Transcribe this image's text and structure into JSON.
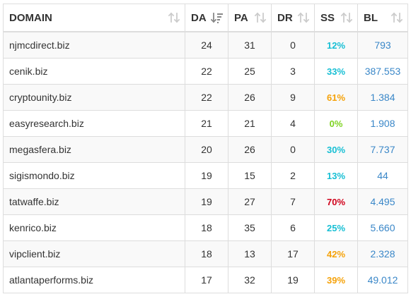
{
  "headers": {
    "domain": "DOMAIN",
    "da": "DA",
    "pa": "PA",
    "dr": "DR",
    "ss": "SS",
    "bl": "BL"
  },
  "sort": {
    "active_column": "da",
    "direction": "descending"
  },
  "colors": {
    "ss_teal": "#17bfd4",
    "ss_orange": "#f5a20a",
    "ss_green": "#7ed321",
    "ss_red": "#d0021b",
    "bl_link": "#3a87c8"
  },
  "rows": [
    {
      "domain": "njmcdirect.biz",
      "da": "24",
      "pa": "31",
      "dr": "0",
      "ss": "12%",
      "ss_color": "teal",
      "bl": "793"
    },
    {
      "domain": "cenik.biz",
      "da": "22",
      "pa": "25",
      "dr": "3",
      "ss": "33%",
      "ss_color": "teal",
      "bl": "387.553"
    },
    {
      "domain": "cryptounity.biz",
      "da": "22",
      "pa": "26",
      "dr": "9",
      "ss": "61%",
      "ss_color": "orange",
      "bl": "1.384"
    },
    {
      "domain": "easyresearch.biz",
      "da": "21",
      "pa": "21",
      "dr": "4",
      "ss": "0%",
      "ss_color": "green",
      "bl": "1.908"
    },
    {
      "domain": "megasfera.biz",
      "da": "20",
      "pa": "26",
      "dr": "0",
      "ss": "30%",
      "ss_color": "teal",
      "bl": "7.737"
    },
    {
      "domain": "sigismondo.biz",
      "da": "19",
      "pa": "15",
      "dr": "2",
      "ss": "13%",
      "ss_color": "teal",
      "bl": "44"
    },
    {
      "domain": "tatwaffe.biz",
      "da": "19",
      "pa": "27",
      "dr": "7",
      "ss": "70%",
      "ss_color": "red",
      "bl": "4.495"
    },
    {
      "domain": "kenrico.biz",
      "da": "18",
      "pa": "35",
      "dr": "6",
      "ss": "25%",
      "ss_color": "teal",
      "bl": "5.660"
    },
    {
      "domain": "vipclient.biz",
      "da": "18",
      "pa": "13",
      "dr": "17",
      "ss": "42%",
      "ss_color": "orange",
      "bl": "2.328"
    },
    {
      "domain": "atlantaperforms.biz",
      "da": "17",
      "pa": "32",
      "dr": "19",
      "ss": "39%",
      "ss_color": "orange",
      "bl": "49.012"
    }
  ]
}
